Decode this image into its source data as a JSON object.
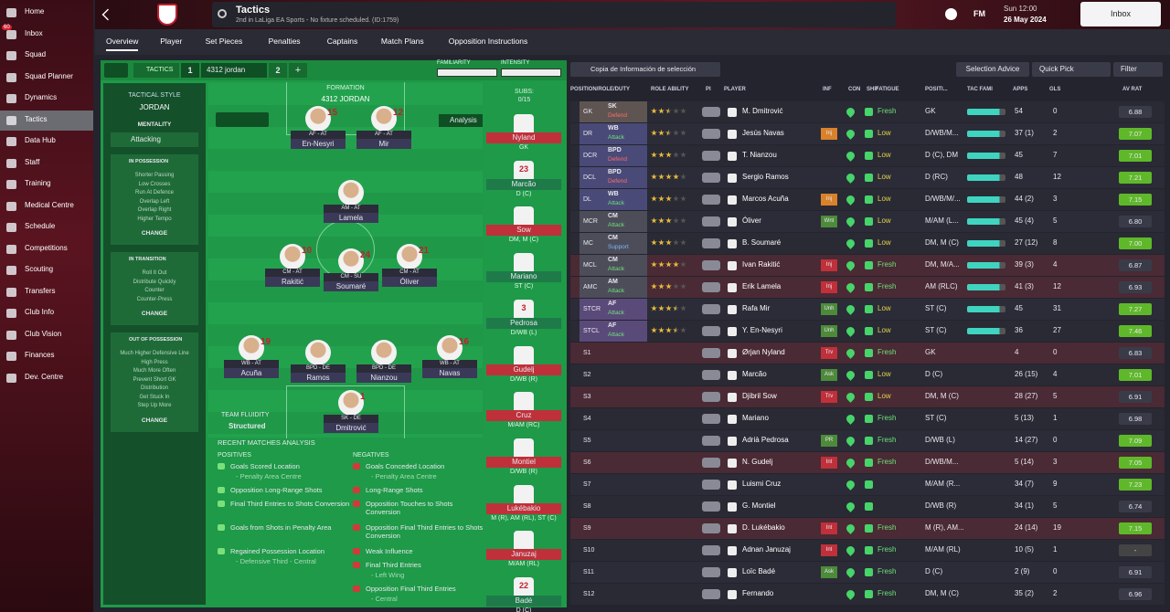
{
  "sidebar": {
    "items": [
      "Home",
      "Inbox",
      "Squad",
      "Squad Planner",
      "Dynamics",
      "Tactics",
      "Data Hub",
      "Staff",
      "Training",
      "Medical Centre",
      "Schedule",
      "Competitions",
      "Scouting",
      "Transfers",
      "Club Info",
      "Club Vision",
      "Finances",
      "Dev. Centre"
    ],
    "badge": "60"
  },
  "header": {
    "title": "Tactics",
    "subtitle": "2nd in LaLiga EA Sports - No fixture scheduled. (ID:1759)",
    "logo": "FM",
    "time": "Sun 12:00",
    "date": "26 May 2024",
    "inbox": "Inbox"
  },
  "tabs": [
    "Overview",
    "Player",
    "Set Pieces",
    "Penalties",
    "Captains",
    "Match Plans",
    "Opposition Instructions"
  ],
  "tactic_bar": {
    "label": "TACTICS",
    "slot1": "1",
    "name": "4312 jordan",
    "slot2": "2",
    "add": "+",
    "familiarity": "FAMILIARITY",
    "intensity": "INTENSITY"
  },
  "style_panel": {
    "heading": "TACTICAL STYLE",
    "name": "JORDAN",
    "mentality_label": "MENTALITY",
    "mentality": "Attacking",
    "sections": [
      {
        "title": "IN POSSESSION",
        "items": [
          "Shorter Passing",
          "Low Crosses",
          "Run At Defence",
          "Overlap Left",
          "Overlap Right",
          "Higher Tempo"
        ],
        "button": "CHANGE"
      },
      {
        "title": "IN TRANSITION",
        "items": [
          "Roll It Out",
          "Distribute Quickly",
          "Counter",
          "Counter-Press"
        ],
        "button": "CHANGE"
      },
      {
        "title": "OUT OF POSSESSION",
        "items": [
          "Much Higher Defensive Line",
          "High Press",
          "Much More Often",
          "Prevent Short GK",
          "Distribution",
          "Get Stuck In",
          "Step Up More"
        ],
        "button": "CHANGE"
      }
    ]
  },
  "pitch": {
    "heading": "FORMATION",
    "formation": "4312 JORDAN",
    "analysis": "Analysis",
    "fluidity_label": "TEAM FLUIDITY",
    "fluidity": "Structured",
    "players": [
      {
        "name": "En-Nesyri",
        "role": "AF - AT",
        "number": "15"
      },
      {
        "name": "Mir",
        "role": "AF - AT",
        "number": "12"
      },
      {
        "name": "Lamela",
        "role": "AM - AT"
      },
      {
        "name": "Rakitić",
        "role": "CM - AT",
        "number": "10"
      },
      {
        "name": "Soumaré",
        "role": "CM - SU",
        "number": "24"
      },
      {
        "name": "Óliver",
        "role": "CM - AT",
        "number": "21"
      },
      {
        "name": "Acuña",
        "role": "WB - AT",
        "number": "19"
      },
      {
        "name": "Ramos",
        "role": "BPD - DE"
      },
      {
        "name": "Nianzou",
        "role": "BPD - DE"
      },
      {
        "name": "Navas",
        "role": "WB - AT",
        "number": "16"
      },
      {
        "name": "Dmitrović",
        "role": "SK - DE",
        "number": "1"
      }
    ]
  },
  "subs": {
    "label": "SUBS:",
    "count": "0/15",
    "players": [
      {
        "name": "Nyland",
        "position": "GK",
        "color": "#c0303a"
      },
      {
        "name": "Marcão",
        "position": "D (C)",
        "number": "23",
        "color": "#1f7a4a"
      },
      {
        "name": "Sow",
        "position": "DM, M (C)",
        "color": "#c0303a"
      },
      {
        "name": "Mariano",
        "position": "ST (C)",
        "color": "#1f7a4a"
      },
      {
        "name": "Pedrosa",
        "position": "D/WB (L)",
        "number": "3",
        "color": "#1f7a4a"
      },
      {
        "name": "Gudelj",
        "position": "D/WB (R)",
        "color": "#c0303a"
      },
      {
        "name": "Cruz",
        "position": "M/AM (RC)",
        "color": "#c0303a"
      },
      {
        "name": "Montiel",
        "position": "D/WB (R)",
        "color": "#c0303a"
      },
      {
        "name": "Lukébakio",
        "position": "M (R), AM (RL), ST (C)",
        "color": "#c0303a"
      },
      {
        "name": "Januzaj",
        "position": "M/AM (RL)",
        "color": "#c0303a"
      },
      {
        "name": "Badé",
        "position": "D (C)",
        "number": "22",
        "color": "#1f7a4a"
      }
    ]
  },
  "analysis": {
    "title": "RECENT MATCHES ANALYSIS",
    "positives_label": "POSITIVES",
    "negatives_label": "NEGATIVES",
    "positives": [
      {
        "text": "Goals Scored Location",
        "detail": "- Penalty Area Centre"
      },
      {
        "text": "Opposition Long-Range Shots"
      },
      {
        "text": "Final Third Entries to Shots Conversion"
      },
      {
        "text": "Goals from Shots in Penalty Area"
      },
      {
        "text": "Regained Possession Location",
        "detail": "- Defensive Third - Central"
      }
    ],
    "negatives": [
      {
        "text": "Goals Conceded Location",
        "detail": "- Penalty Area Centre"
      },
      {
        "text": "Long-Range Shots"
      },
      {
        "text": "Opposition Touches to Shots Conversion"
      },
      {
        "text": "Opposition Final Third Entries to Shots Conversion"
      },
      {
        "text": "Weak Influence"
      },
      {
        "text": "Final Third Entries",
        "detail": "- Left Wing"
      },
      {
        "text": "Opposition Final Third Entries",
        "detail": "- Central"
      }
    ]
  },
  "table": {
    "copy": "Copia de Información de selección",
    "advice": "Selection Advice",
    "quick_pick": "Quick Pick",
    "filter": "Filter",
    "columns": [
      "POSITION/ROLE/DUTY",
      "ROLE ABILITY",
      "PI",
      "PLAYER",
      "INF",
      "CON",
      "SHP",
      "FATIGUE",
      "POSITI...",
      "TAC FAMI",
      "APPS",
      "GLS",
      "AV RAT"
    ],
    "rows": [
      {
        "position": "GK",
        "role": "SK",
        "duty": "Defend",
        "ability": 2.5,
        "player": "M. Dmitrović",
        "fatigue": "Fresh",
        "positions": "GK",
        "apps": "54",
        "gls": "0",
        "rating": "6.88"
      },
      {
        "position": "DR",
        "role": "WB",
        "duty": "Attack",
        "ability": 2.5,
        "player": "Jesús Navas",
        "inf": {
          "label": "Inj",
          "color": "#d9822b"
        },
        "fatigue": "Low",
        "positions": "D/WB/M...",
        "apps": "37 (1)",
        "gls": "2",
        "rating": "7.07"
      },
      {
        "position": "DCR",
        "role": "BPD",
        "duty": "Defend",
        "ability": 3,
        "player": "T. Nianzou",
        "fatigue": "Low",
        "positions": "D (C), DM",
        "apps": "45",
        "gls": "7",
        "rating": "7.01"
      },
      {
        "position": "DCL",
        "role": "BPD",
        "duty": "Defend",
        "ability": 4,
        "player": "Sergio Ramos",
        "fatigue": "Low",
        "positions": "D (RC)",
        "apps": "48",
        "gls": "12",
        "rating": "7.21"
      },
      {
        "position": "DL",
        "role": "WB",
        "duty": "Attack",
        "ability": 3,
        "player": "Marcos Acuña",
        "inf": {
          "label": "Inj",
          "color": "#d9822b"
        },
        "fatigue": "Low",
        "positions": "D/WB/M/...",
        "apps": "44 (2)",
        "gls": "3",
        "rating": "7.15"
      },
      {
        "position": "MCR",
        "role": "CM",
        "duty": "Attack",
        "ability": 3,
        "player": "Óliver",
        "inf": {
          "label": "Wnt",
          "color": "#4d8a3a"
        },
        "fatigue": "Low",
        "positions": "M/AM (L...",
        "apps": "45 (4)",
        "gls": "5",
        "rating": "6.80"
      },
      {
        "position": "MC",
        "role": "CM",
        "duty": "Support",
        "ability": 3,
        "player": "B. Soumaré",
        "fatigue": "Low",
        "positions": "DM, M (C)",
        "apps": "27 (12)",
        "gls": "8",
        "rating": "7.00"
      },
      {
        "position": "MCL",
        "role": "CM",
        "duty": "Attack",
        "ability": 4,
        "player": "Ivan Rakitić",
        "inf": {
          "label": "Inj",
          "color": "#c0303a"
        },
        "fatigue": "Fresh",
        "positions": "DM, M/A...",
        "apps": "39 (3)",
        "gls": "4",
        "rating": "6.87",
        "color": "#4a2a34"
      },
      {
        "position": "AMC",
        "role": "AM",
        "duty": "Attack",
        "ability": 3,
        "player": "Erik Lamela",
        "inf": {
          "label": "Inj",
          "color": "#c0303a"
        },
        "fatigue": "Fresh",
        "positions": "AM (RLC)",
        "apps": "41 (3)",
        "gls": "12",
        "rating": "6.93",
        "color": "#4a2a34"
      },
      {
        "position": "STCR",
        "role": "AF",
        "duty": "Attack",
        "ability": 3.5,
        "player": "Rafa Mir",
        "inf": {
          "label": "Unh",
          "color": "#4d8a3a"
        },
        "fatigue": "Low",
        "positions": "ST (C)",
        "apps": "45",
        "gls": "31",
        "rating": "7.27"
      },
      {
        "position": "STCL",
        "role": "AF",
        "duty": "Attack",
        "ability": 3.5,
        "player": "Y. En-Nesyri",
        "inf": {
          "label": "Unh",
          "color": "#4d8a3a"
        },
        "fatigue": "Low",
        "positions": "ST (C)",
        "apps": "36",
        "gls": "27",
        "rating": "7.46"
      },
      {
        "position": "S1",
        "player": "Ørjan Nyland",
        "inf": {
          "label": "Trv",
          "color": "#c0303a"
        },
        "fatigue": "Fresh",
        "positions": "GK",
        "apps": "4",
        "gls": "0",
        "rating": "6.83",
        "color": "#4a2a34"
      },
      {
        "position": "S2",
        "player": "Marcão",
        "inf": {
          "label": "Ask",
          "color": "#4d8a3a"
        },
        "fatigue": "Low",
        "positions": "D (C)",
        "apps": "26 (15)",
        "gls": "4",
        "rating": "7.01"
      },
      {
        "position": "S3",
        "player": "Djibril Sow",
        "inf": {
          "label": "Trv",
          "color": "#c0303a"
        },
        "fatigue": "Low",
        "positions": "DM, M (C)",
        "apps": "28 (27)",
        "gls": "5",
        "rating": "6.91",
        "color": "#4a2a34"
      },
      {
        "position": "S4",
        "player": "Mariano",
        "fatigue": "Fresh",
        "positions": "ST (C)",
        "apps": "5 (13)",
        "gls": "1",
        "rating": "6.98"
      },
      {
        "position": "S5",
        "player": "Adrià Pedrosa",
        "inf": {
          "label": "PR",
          "color": "#4d8a3a"
        },
        "fatigue": "Fresh",
        "positions": "D/WB (L)",
        "apps": "14 (27)",
        "gls": "0",
        "rating": "7.09"
      },
      {
        "position": "S6",
        "player": "N. Gudelj",
        "inf": {
          "label": "Int",
          "color": "#c0303a"
        },
        "fatigue": "Fresh",
        "positions": "D/WB/M...",
        "apps": "5 (14)",
        "gls": "3",
        "rating": "7.05",
        "color": "#4a2a34"
      },
      {
        "position": "S7",
        "player": "Luismi Cruz",
        "positions": "M/AM (R...",
        "apps": "34 (7)",
        "gls": "9",
        "rating": "7.23"
      },
      {
        "position": "S8",
        "player": "G. Montiel",
        "positions": "D/WB (R)",
        "apps": "34 (1)",
        "gls": "5",
        "rating": "6.74"
      },
      {
        "position": "S9",
        "player": "D. Lukébakio",
        "inf": {
          "label": "Int",
          "color": "#c0303a"
        },
        "fatigue": "Fresh",
        "positions": "M (R), AM...",
        "apps": "24 (14)",
        "gls": "19",
        "rating": "7.15",
        "color": "#4a2a34"
      },
      {
        "position": "S10",
        "player": "Adnan Januzaj",
        "inf": {
          "label": "Int",
          "color": "#c0303a"
        },
        "fatigue": "Fresh",
        "positions": "M/AM (RL)",
        "apps": "10 (5)",
        "gls": "1",
        "rating": "-"
      },
      {
        "position": "S11",
        "player": "Loïc Badé",
        "inf": {
          "label": "Ask",
          "color": "#4d8a3a"
        },
        "fatigue": "Fresh",
        "positions": "D (C)",
        "apps": "2 (9)",
        "gls": "0",
        "rating": "6.91"
      },
      {
        "position": "S12",
        "player": "Fernando",
        "fatigue": "Fresh",
        "positions": "DM, M (C)",
        "apps": "35 (2)",
        "gls": "2",
        "rating": "6.96"
      }
    ]
  }
}
